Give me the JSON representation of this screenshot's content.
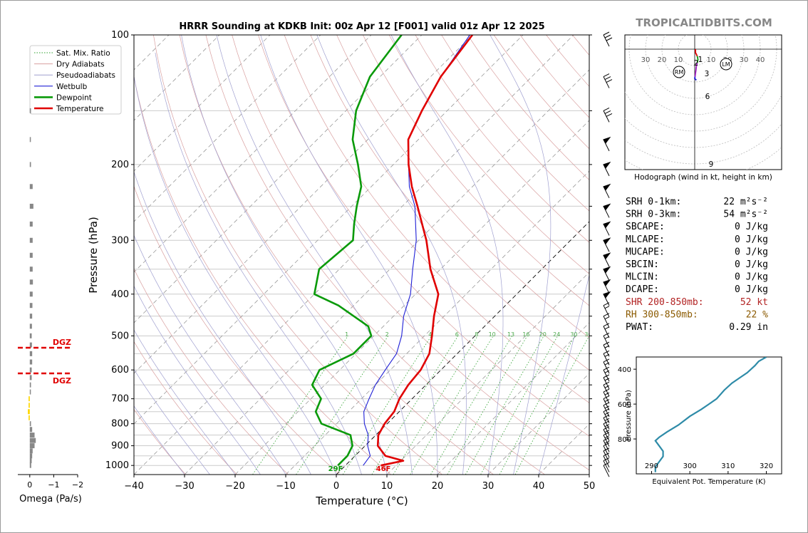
{
  "watermark": "TROPICALTIDBITS.COM",
  "skewt": {
    "title": "HRRR Sounding at KDKB Init: 00z Apr 12 [F001] valid 01z Apr 12 2025",
    "xlabel": "Temperature (°C)",
    "ylabel": "Pressure (hPa)",
    "x_ticks": [
      "−40",
      "−30",
      "−20",
      "−10",
      "0",
      "10",
      "20",
      "30",
      "40",
      "50"
    ],
    "y_ticks": [
      "100",
      "200",
      "300",
      "400",
      "500",
      "600",
      "700",
      "800",
      "900",
      "1000"
    ],
    "legend": [
      {
        "label": "Sat. Mix. Ratio",
        "style": "dotted",
        "color": "#2ca02c"
      },
      {
        "label": "Dry Adiabats",
        "style": "solid",
        "color": "#d9a0a0"
      },
      {
        "label": "Pseudoadiabats",
        "style": "solid",
        "color": "#a0a0d0"
      },
      {
        "label": "Wetbulb",
        "style": "solid",
        "color": "#1f1fd6"
      },
      {
        "label": "Dewpoint",
        "style": "solid",
        "color": "#0a9a0a"
      },
      {
        "label": "Temperature",
        "style": "solid",
        "color": "#e00000"
      }
    ],
    "surface_dewpoint": "29F",
    "surface_temperature": "46F",
    "mixing_ratio_labels": [
      "1",
      "2",
      "4",
      "6",
      "8",
      "10",
      "13",
      "16",
      "20",
      "24",
      "30",
      "36"
    ]
  },
  "omega": {
    "xlabel": "Omega (Pa/s)",
    "x_ticks": [
      "0",
      "−1",
      "−2"
    ],
    "dgz_upper": "DGZ",
    "dgz_lower": "DGZ"
  },
  "hodograph": {
    "caption": "Hodograph (wind in kt, height in km)",
    "ring_labels": [
      "30",
      "20",
      "10",
      "10",
      "20",
      "30",
      "40"
    ],
    "height_labels": [
      "1",
      "2",
      "3",
      "6",
      "9"
    ],
    "rm_label": "RM",
    "lm_label": "LM"
  },
  "indices": [
    {
      "name": "SRH 0-1km:",
      "value": "22 m²s⁻²",
      "color": "#000000"
    },
    {
      "name": "SRH 0-3km:",
      "value": "54 m²s⁻²",
      "color": "#000000"
    },
    {
      "name": "SBCAPE:",
      "value": "0 J/kg",
      "color": "#000000"
    },
    {
      "name": "MLCAPE:",
      "value": "0 J/kg",
      "color": "#000000"
    },
    {
      "name": "MUCAPE:",
      "value": "0 J/kg",
      "color": "#000000"
    },
    {
      "name": "SBCIN:",
      "value": "0 J/kg",
      "color": "#000000"
    },
    {
      "name": "MLCIN:",
      "value": "0 J/kg",
      "color": "#000000"
    },
    {
      "name": "DCAPE:",
      "value": "0 J/kg",
      "color": "#000000"
    },
    {
      "name": "SHR 200-850mb:",
      "value": "52 kt",
      "color": "#b22222"
    },
    {
      "name": "RH 300-850mb:",
      "value": "22 %",
      "color": "#8b5a00"
    },
    {
      "name": "PWAT:",
      "value": "0.29 in",
      "color": "#000000"
    }
  ],
  "theta_e": {
    "xlabel": "Equivalent Pot. Temperature (K)",
    "ylabel": "Pressure (hPa)",
    "x_ticks": [
      "290",
      "300",
      "310",
      "320"
    ],
    "y_ticks": [
      "400",
      "600",
      "800"
    ]
  },
  "chart_data": [
    {
      "type": "line",
      "title": "HRRR Sounding at KDKB Init: 00z Apr 12 [F001] valid 01z Apr 12 2025",
      "xlabel": "Temperature (°C)",
      "ylabel": "Pressure (hPa)",
      "xlim": [
        -40,
        50
      ],
      "ylim": [
        1050,
        100
      ],
      "y_scale": "log",
      "skew": "skew-T (45°)",
      "legend_position": "top-left",
      "series": [
        {
          "name": "Temperature",
          "color": "#e00000",
          "points": [
            [
              7.0,
              1000
            ],
            [
              10.5,
              975
            ],
            [
              6.0,
              950
            ],
            [
              2.5,
              900
            ],
            [
              0.5,
              850
            ],
            [
              -0.5,
              800
            ],
            [
              -1.0,
              750
            ],
            [
              -2.5,
              700
            ],
            [
              -3.5,
              650
            ],
            [
              -4.0,
              600
            ],
            [
              -5.5,
              550
            ],
            [
              -8.5,
              500
            ],
            [
              -12.0,
              450
            ],
            [
              -15.5,
              400
            ],
            [
              -22.0,
              350
            ],
            [
              -28.5,
              300
            ],
            [
              -37.0,
              250
            ],
            [
              -42.0,
              225
            ],
            [
              -47.0,
              200
            ],
            [
              -52.0,
              175
            ],
            [
              -55.0,
              150
            ],
            [
              -58.0,
              125
            ],
            [
              -60.0,
              100
            ]
          ]
        },
        {
          "name": "Dewpoint",
          "color": "#0a9a0a",
          "points": [
            [
              -1.5,
              1000
            ],
            [
              -1.5,
              950
            ],
            [
              -2.5,
              900
            ],
            [
              -5.0,
              850
            ],
            [
              -13.0,
              800
            ],
            [
              -16.5,
              750
            ],
            [
              -18.0,
              700
            ],
            [
              -22.5,
              650
            ],
            [
              -24.0,
              600
            ],
            [
              -20.5,
              550
            ],
            [
              -20.5,
              500
            ],
            [
              -23.0,
              475
            ],
            [
              -33.0,
              425
            ],
            [
              -40.0,
              400
            ],
            [
              -44.0,
              350
            ],
            [
              -43.0,
              300
            ],
            [
              -46.0,
              275
            ],
            [
              -49.0,
              250
            ],
            [
              -52.0,
              225
            ],
            [
              -57.0,
              200
            ],
            [
              -63.0,
              175
            ],
            [
              -68.0,
              150
            ],
            [
              -72.0,
              125
            ],
            [
              -74.0,
              100
            ]
          ]
        },
        {
          "name": "Wetbulb",
          "color": "#1f1fd6",
          "points": [
            [
              3.5,
              1000
            ],
            [
              3.0,
              950
            ],
            [
              0.5,
              900
            ],
            [
              -1.5,
              850
            ],
            [
              -4.5,
              800
            ],
            [
              -7.0,
              750
            ],
            [
              -8.5,
              700
            ],
            [
              -10.0,
              650
            ],
            [
              -11.0,
              600
            ],
            [
              -12.0,
              550
            ],
            [
              -14.5,
              500
            ],
            [
              -18.0,
              450
            ],
            [
              -21.0,
              400
            ],
            [
              -25.5,
              350
            ],
            [
              -30.5,
              300
            ],
            [
              -37.5,
              250
            ],
            [
              -42.5,
              225
            ],
            [
              -47.0,
              200
            ],
            [
              -52.0,
              175
            ],
            [
              -55.0,
              150
            ],
            [
              -58.0,
              125
            ],
            [
              -60.5,
              100
            ]
          ]
        }
      ]
    },
    {
      "type": "bar",
      "xlabel": "Omega (Pa/s)",
      "xlim": [
        0.5,
        -2
      ],
      "series": [
        {
          "name": "",
          "points": [
            [
              -0.05,
              150
            ],
            [
              -0.04,
              175
            ],
            [
              -0.05,
              200
            ],
            [
              -0.12,
              225
            ],
            [
              -0.15,
              250
            ],
            [
              -0.12,
              275
            ],
            [
              -0.12,
              300
            ],
            [
              -0.12,
              325
            ],
            [
              -0.12,
              350
            ],
            [
              -0.13,
              375
            ],
            [
              -0.12,
              400
            ],
            [
              -0.11,
              425
            ],
            [
              -0.1,
              450
            ],
            [
              -0.09,
              475
            ],
            [
              -0.08,
              500
            ],
            [
              -0.09,
              525
            ],
            [
              -0.1,
              550
            ],
            [
              -0.1,
              575
            ],
            [
              -0.08,
              600
            ],
            [
              -0.08,
              625
            ],
            [
              -0.05,
              650
            ],
            [
              -0.03,
              675
            ],
            [
              0.05,
              700
            ],
            [
              0.05,
              725
            ],
            [
              0.08,
              750
            ],
            [
              0.05,
              775
            ],
            [
              -0.05,
              800
            ],
            [
              -0.1,
              825
            ],
            [
              -0.2,
              850
            ],
            [
              -0.25,
              875
            ],
            [
              -0.2,
              900
            ],
            [
              -0.12,
              925
            ],
            [
              -0.1,
              950
            ],
            [
              -0.08,
              975
            ],
            [
              -0.06,
              1000
            ]
          ]
        }
      ],
      "annotations": [
        "DGZ",
        "DGZ"
      ]
    },
    {
      "type": "line",
      "title": "Hodograph (wind in kt, height in km)",
      "units": "kt",
      "series": [
        {
          "name": "Hodograph",
          "points": [
            [
              0.5,
              0
            ],
            [
              0.5,
              -1
            ],
            [
              1.5,
              -2
            ],
            [
              2.0,
              -3
            ],
            [
              1.5,
              -4
            ],
            [
              1.0,
              -5
            ],
            [
              0.8,
              -6
            ],
            [
              0.5,
              -7
            ],
            [
              0.2,
              -8
            ],
            [
              0.0,
              -8.5
            ],
            [
              1.0,
              -9
            ]
          ]
        }
      ]
    },
    {
      "type": "line",
      "xlabel": "Equivalent Pot. Temperature (K)",
      "ylabel": "Pressure (hPa)",
      "xlim": [
        286,
        324
      ],
      "ylim": [
        1000,
        330
      ],
      "series": [
        {
          "name": "",
          "color": "#2e8ba8",
          "points": [
            [
              320.0,
              330
            ],
            [
              318.0,
              355
            ],
            [
              317.0,
              380
            ],
            [
              315.0,
              420
            ],
            [
              313.0,
              450
            ],
            [
              311.0,
              480
            ],
            [
              309.0,
              520
            ],
            [
              307.0,
              570
            ],
            [
              305.0,
              600
            ],
            [
              303.0,
              630
            ],
            [
              300.0,
              670
            ],
            [
              297.0,
              720
            ],
            [
              294.0,
              760
            ],
            [
              292.0,
              790
            ],
            [
              291.0,
              810
            ],
            [
              292.0,
              840
            ],
            [
              293.0,
              870
            ],
            [
              293.0,
              900
            ],
            [
              292.0,
              930
            ],
            [
              291.0,
              960
            ],
            [
              291.0,
              990
            ]
          ]
        }
      ]
    }
  ]
}
